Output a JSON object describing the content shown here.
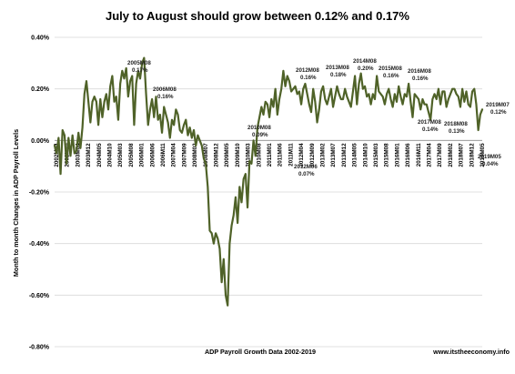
{
  "chart_data": {
    "type": "line",
    "title": "July to August should grow between 0.12% and 0.17%",
    "xlabel": "ADP Payroll Growth Data 2002-2019",
    "ylabel": "Month to month Changes in ADP Payroll Levels",
    "source": "www.itstheeconomy.info",
    "ylim": [
      -0.8,
      0.4
    ],
    "yticks": [
      "0.40%",
      "0.20%",
      "0.00%",
      "-0.20%",
      "-0.40%",
      "-0.60%",
      "-0.80%"
    ],
    "xticks": [
      "2002M04",
      "2002M10",
      "2003M04",
      "2003M12",
      "2004M05",
      "2004M10",
      "2005M03",
      "2005M08",
      "2006M01",
      "2006M06",
      "2006M11",
      "2007M04",
      "2007M09",
      "2008M02",
      "2008M07",
      "2008M12",
      "2009M05",
      "2009M10",
      "2010M03",
      "2010M08",
      "2011M01",
      "2011M06",
      "2011M11",
      "2012M04",
      "2012M09",
      "2013M02",
      "2013M07",
      "2013M12",
      "2014M05",
      "2014M10",
      "2015M03",
      "2015M08",
      "2016M01",
      "2016M06",
      "2016M11",
      "2017M04",
      "2017M09",
      "2018M02",
      "2018M07",
      "2018M12",
      "2019M05"
    ],
    "grid": true,
    "series": [
      {
        "color": "#4f6228",
        "values": [
          -0.02,
          -0.05,
          0.01,
          -0.13,
          0.04,
          0.02,
          -0.09,
          0.01,
          -0.06,
          0.02,
          -0.05,
          -0.04,
          0.03,
          -0.03,
          0.05,
          0.18,
          0.23,
          0.15,
          0.07,
          0.15,
          0.17,
          0.15,
          0.06,
          0.16,
          0.09,
          0.15,
          0.18,
          0.12,
          0.21,
          0.25,
          0.15,
          0.17,
          0.08,
          0.22,
          0.27,
          0.24,
          0.28,
          0.17,
          0.23,
          0.25,
          0.06,
          0.22,
          0.27,
          0.24,
          0.3,
          0.32,
          0.18,
          0.06,
          0.12,
          0.16,
          0.09,
          0.17,
          0.08,
          0.1,
          0.03,
          0.13,
          0.1,
          0.07,
          0.01,
          0.08,
          0.06,
          0.12,
          0.1,
          0.04,
          0.03,
          0.06,
          0.08,
          0.02,
          0.05,
          0.01,
          0.04,
          -0.02,
          0.02,
          0.0,
          -0.02,
          -0.07,
          -0.09,
          -0.18,
          -0.35,
          -0.36,
          -0.4,
          -0.36,
          -0.38,
          -0.42,
          -0.55,
          -0.46,
          -0.6,
          -0.64,
          -0.4,
          -0.33,
          -0.29,
          -0.22,
          -0.32,
          -0.18,
          -0.24,
          -0.15,
          -0.13,
          -0.26,
          -0.08,
          -0.09,
          0.0,
          -0.06,
          0.05,
          0.09,
          0.13,
          0.1,
          0.15,
          0.14,
          0.09,
          0.16,
          0.13,
          0.2,
          0.1,
          0.16,
          0.2,
          0.27,
          0.21,
          0.25,
          0.23,
          0.19,
          0.2,
          0.21,
          0.18,
          0.19,
          0.14,
          0.2,
          0.22,
          0.18,
          0.14,
          0.11,
          0.2,
          0.15,
          0.07,
          0.12,
          0.19,
          0.21,
          0.16,
          0.14,
          0.17,
          0.2,
          0.13,
          0.17,
          0.21,
          0.18,
          0.16,
          0.16,
          0.2,
          0.17,
          0.15,
          0.13,
          0.19,
          0.25,
          0.14,
          0.22,
          0.26,
          0.2,
          0.21,
          0.17,
          0.18,
          0.14,
          0.18,
          0.16,
          0.25,
          0.19,
          0.18,
          0.17,
          0.14,
          0.18,
          0.2,
          0.16,
          0.13,
          0.18,
          0.15,
          0.21,
          0.17,
          0.14,
          0.18,
          0.17,
          0.22,
          0.15,
          0.09,
          0.18,
          0.17,
          0.16,
          0.12,
          0.16,
          0.14,
          0.14,
          0.11,
          0.08,
          0.16,
          0.18,
          0.16,
          0.2,
          0.14,
          0.19,
          0.19,
          0.13,
          0.16,
          0.18,
          0.2,
          0.2,
          0.18,
          0.17,
          0.13,
          0.2,
          0.15,
          0.19,
          0.14,
          0.13,
          0.19,
          0.2,
          0.14,
          0.04,
          0.1,
          0.12
        ]
      }
    ],
    "annotations": [
      {
        "text": "2005M08",
        "value": "0.17%",
        "x_index": 40,
        "y_value": 0.31,
        "label_index": 0
      },
      {
        "text": "2006M08",
        "value": "0.16%",
        "x_index": 52,
        "y_value": 0.21,
        "label_index": 1
      },
      {
        "text": "2010M08",
        "value": "0.09%",
        "x_index": 101,
        "y_value": 0.07,
        "label_index": 2
      },
      {
        "text": "2012M08",
        "value": "0.16%",
        "x_index": 125,
        "y_value": 0.27,
        "label_index": 3
      },
      {
        "text": "2012M06",
        "value": "0.07%",
        "x_index": 123,
        "y_value": 0.05,
        "label_index": 4
      },
      {
        "text": "2013M08",
        "value": "0.18%",
        "x_index": 137,
        "y_value": 0.28,
        "label_index": 5
      },
      {
        "text": "2014M08",
        "value": "0.20%",
        "x_index": 149,
        "y_value": 0.31,
        "label_index": 6
      },
      {
        "text": "2015M08",
        "value": "0.16%",
        "x_index": 161,
        "y_value": 0.28,
        "label_index": 7
      },
      {
        "text": "2016M08",
        "value": "0.16%",
        "x_index": 173,
        "y_value": 0.26,
        "label_index": 8
      },
      {
        "text": "2017M08",
        "value": "0.14%",
        "x_index": 185,
        "y_value": 0.08,
        "label_index": 9
      },
      {
        "text": "2018M08",
        "value": "0.13%",
        "x_index": 197,
        "y_value": 0.09,
        "label_index": 10
      },
      {
        "text": "2019M07",
        "value": "0.12%",
        "x_index": 208,
        "y_value": 0.13,
        "label_index": 11
      },
      {
        "text": "2019M05",
        "value": "0.04%",
        "x_index": 206,
        "y_value": 0.01,
        "label_index": 12
      }
    ]
  }
}
